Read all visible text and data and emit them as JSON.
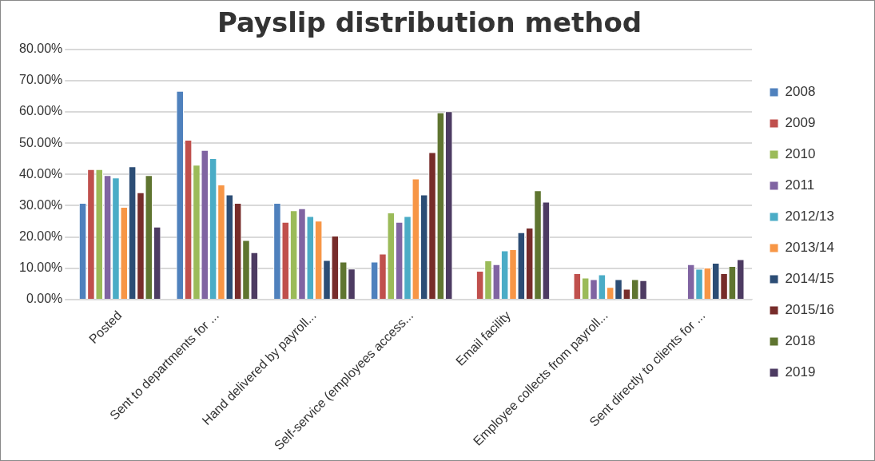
{
  "chart_data": {
    "type": "bar",
    "title": "Payslip distribution method",
    "categories": [
      "Posted",
      "Sent to departments for ...",
      "Hand delivered by payroll...",
      "Self-service (employees access...",
      "Email facility",
      "Employee collects from payroll...",
      "Sent directly to clients for ..."
    ],
    "series": [
      {
        "name": "2008",
        "color": "#4f81bd",
        "values": [
          30.9,
          66.7,
          30.9,
          12.1,
          null,
          null,
          null
        ]
      },
      {
        "name": "2009",
        "color": "#c0504d",
        "values": [
          41.7,
          51.1,
          24.8,
          14.7,
          9.2,
          8.4,
          null
        ]
      },
      {
        "name": "2010",
        "color": "#9bbb59",
        "values": [
          41.7,
          43.1,
          28.5,
          27.8,
          12.5,
          7,
          null
        ]
      },
      {
        "name": "2011",
        "color": "#8064a2",
        "values": [
          39.8,
          47.8,
          29.2,
          24.8,
          11.3,
          6.5,
          11.3
        ]
      },
      {
        "name": "2012/13",
        "color": "#4bacc6",
        "values": [
          39,
          45.2,
          26.7,
          26.7,
          15.7,
          8,
          9.8
        ]
      },
      {
        "name": "2013/14",
        "color": "#f79646",
        "values": [
          29.6,
          36.8,
          25.2,
          38.7,
          16.1,
          4,
          10.2
        ]
      },
      {
        "name": "2014/15",
        "color": "#2c4d75",
        "values": [
          42.6,
          33.6,
          12.6,
          33.6,
          21.5,
          6.5,
          11.7
        ]
      },
      {
        "name": "2015/16",
        "color": "#772c2a",
        "values": [
          34.3,
          30.9,
          20.4,
          47.1,
          23,
          3.4,
          8.4
        ]
      },
      {
        "name": "2018",
        "color": "#5f7530",
        "values": [
          39.8,
          19,
          12.1,
          59.8,
          34.9,
          6.5,
          10.7
        ]
      },
      {
        "name": "2019",
        "color": "#4d3b62",
        "values": [
          23.3,
          15.1,
          9.9,
          60.2,
          31.3,
          6.2,
          12.9
        ]
      }
    ],
    "ylim": [
      0,
      80
    ],
    "yticks": [
      {
        "value": 0,
        "label": "0.00%"
      },
      {
        "value": 10,
        "label": "10.00%"
      },
      {
        "value": 20,
        "label": "20.00%"
      },
      {
        "value": 30,
        "label": "30.00%"
      },
      {
        "value": 40,
        "label": "40.00%"
      },
      {
        "value": 50,
        "label": "50.00%"
      },
      {
        "value": 60,
        "label": "60.00%"
      },
      {
        "value": 70,
        "label": "70.00%"
      },
      {
        "value": 80,
        "label": "80.00%"
      }
    ],
    "grid": "y",
    "legend": "right"
  }
}
